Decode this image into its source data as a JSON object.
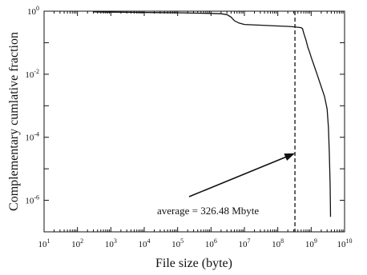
{
  "chart_data": {
    "type": "line",
    "title": "",
    "xlabel": "File size (byte)",
    "ylabel": "Complementary cumlative fraction",
    "xscale": "log",
    "yscale": "log",
    "xlim": [
      10,
      10000000000
    ],
    "ylim": [
      1e-07,
      1
    ],
    "x_ticks": [
      {
        "base": "10",
        "exp": "1"
      },
      {
        "base": "10",
        "exp": "2"
      },
      {
        "base": "10",
        "exp": "3"
      },
      {
        "base": "10",
        "exp": "4"
      },
      {
        "base": "10",
        "exp": "5"
      },
      {
        "base": "10",
        "exp": "6"
      },
      {
        "base": "10",
        "exp": "7"
      },
      {
        "base": "10",
        "exp": "8"
      },
      {
        "base": "10",
        "exp": "9"
      },
      {
        "base": "10",
        "exp": "10"
      }
    ],
    "y_ticks": [
      {
        "value": 1,
        "base": "10",
        "exp": "0"
      },
      {
        "value": 0.01,
        "base": "10",
        "exp": "-2"
      },
      {
        "value": 0.0001,
        "base": "10",
        "exp": "-4"
      },
      {
        "value": 1e-06,
        "base": "10",
        "exp": "-6"
      }
    ],
    "grid": false,
    "series": [
      {
        "x": [
          300,
          1000,
          3000,
          10000,
          30000,
          100000,
          300000,
          1000000,
          2000000,
          3000000,
          4000000,
          5000000,
          7000000,
          10000000,
          30000000,
          100000000,
          200000000,
          300000000,
          400000000,
          500000000,
          550000000,
          600000000,
          700000000,
          800000000,
          900000000,
          1000000000,
          1200000000,
          1500000000,
          2000000000,
          2500000000,
          3000000000,
          3300000000,
          3500000000,
          3700000000,
          3800000000
        ],
        "y": [
          0.95,
          0.93,
          0.92,
          0.91,
          0.9,
          0.89,
          0.87,
          0.85,
          0.83,
          0.78,
          0.65,
          0.5,
          0.42,
          0.38,
          0.36,
          0.34,
          0.33,
          0.32,
          0.31,
          0.3,
          0.28,
          0.2,
          0.12,
          0.07,
          0.05,
          0.035,
          0.02,
          0.01,
          0.004,
          0.002,
          0.0008,
          0.0002,
          3e-05,
          3e-06,
          3e-07
        ]
      }
    ],
    "reference_line": {
      "x": 326480000,
      "style": "dashed"
    },
    "annotation": {
      "text": "average = 326.48 Mbyte",
      "arrow_to": {
        "x": 300000000,
        "y": 3e-05
      }
    }
  }
}
